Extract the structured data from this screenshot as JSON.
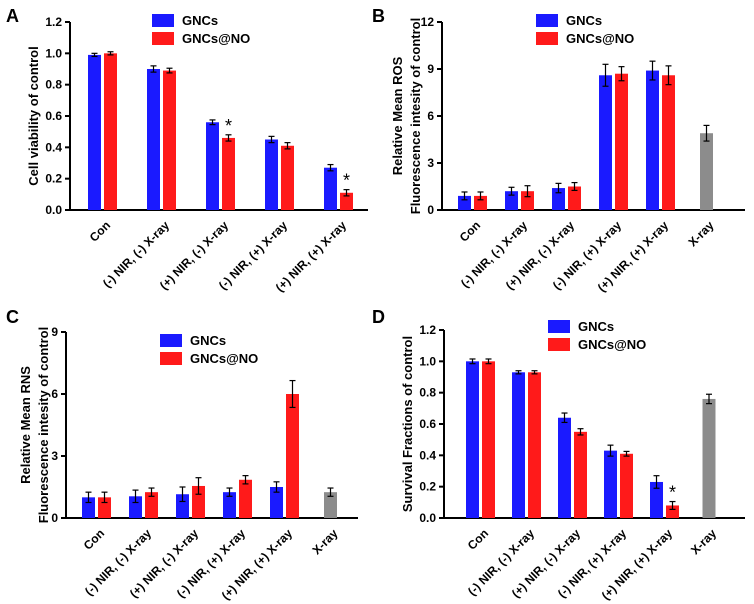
{
  "colors": {
    "GNCs": "#1a1aff",
    "GNCs@NO": "#ff1a1a",
    "X-ray": "#8c8c8c",
    "axis": "#000000"
  },
  "chart_data": [
    {
      "panel": "A",
      "type": "bar",
      "title": "",
      "xlabel": "",
      "ylabel": "Cell viability of control",
      "ylim": [
        0,
        1.2
      ],
      "yticks": [
        "0.0",
        "0.2",
        "0.4",
        "0.6",
        "0.8",
        "1.0",
        "1.2"
      ],
      "categories": [
        "Con",
        "(-) NIR, (-) X-ray",
        "(+) NIR, (-) X-ray",
        "(-) NIR, (+) X-ray",
        "(+) NIR, (+) X-ray"
      ],
      "legend": [
        "GNCs",
        "GNCs@NO"
      ],
      "series": [
        {
          "name": "GNCs",
          "values": [
            0.99,
            0.9,
            0.56,
            0.45,
            0.27
          ],
          "errors": [
            0.01,
            0.02,
            0.015,
            0.02,
            0.02
          ]
        },
        {
          "name": "GNCs@NO",
          "values": [
            1.0,
            0.89,
            0.46,
            0.41,
            0.11
          ],
          "errors": [
            0.01,
            0.015,
            0.02,
            0.02,
            0.02
          ]
        }
      ],
      "annotations": [
        {
          "series": "GNCs@NO",
          "category": "(+) NIR, (-) X-ray",
          "text": "*"
        },
        {
          "series": "GNCs@NO",
          "category": "(+) NIR, (+) X-ray",
          "text": "*"
        }
      ]
    },
    {
      "panel": "B",
      "type": "bar",
      "title": "",
      "xlabel": "",
      "ylabel": [
        "Relative Mean ROS",
        "Fluorescence intesity of control"
      ],
      "ylim": [
        0,
        12
      ],
      "yticks": [
        "0",
        "3",
        "6",
        "9",
        "12"
      ],
      "categories": [
        "Con",
        "(-) NIR, (-) X-ray",
        "(+) NIR, (-) X-ray",
        "(-) NIR, (+) X-ray",
        "(+) NIR, (+) X-ray",
        "X-ray"
      ],
      "legend": [
        "GNCs",
        "GNCs@NO"
      ],
      "series": [
        {
          "name": "GNCs",
          "values": [
            0.9,
            1.2,
            1.4,
            8.6,
            8.9,
            null
          ],
          "errors": [
            0.25,
            0.25,
            0.3,
            0.7,
            0.6,
            null
          ]
        },
        {
          "name": "GNCs@NO",
          "values": [
            0.9,
            1.2,
            1.5,
            8.7,
            8.6,
            null
          ],
          "errors": [
            0.25,
            0.35,
            0.25,
            0.45,
            0.6,
            null
          ]
        },
        {
          "name": "X-ray",
          "values": [
            null,
            null,
            null,
            null,
            null,
            4.9
          ],
          "errors": [
            null,
            null,
            null,
            null,
            null,
            0.5
          ]
        }
      ]
    },
    {
      "panel": "C",
      "type": "bar",
      "title": "",
      "xlabel": "",
      "ylabel": [
        "Relative Mean RNS",
        "Fluorescence intesity of control"
      ],
      "ylim": [
        0,
        9
      ],
      "yticks": [
        "0",
        "3",
        "6",
        "9"
      ],
      "categories": [
        "Con",
        "(-) NIR, (-) X-ray",
        "(+) NIR, (-) X-ray",
        "(-) NIR, (+) X-ray",
        "(+) NIR, (+) X-ray",
        "X-ray"
      ],
      "legend": [
        "GNCs",
        "GNCs@NO"
      ],
      "series": [
        {
          "name": "GNCs",
          "values": [
            1.0,
            1.05,
            1.15,
            1.25,
            1.5,
            null
          ],
          "errors": [
            0.25,
            0.3,
            0.35,
            0.2,
            0.25,
            null
          ]
        },
        {
          "name": "GNCs@NO",
          "values": [
            1.0,
            1.25,
            1.55,
            1.85,
            6.0,
            null
          ],
          "errors": [
            0.25,
            0.2,
            0.4,
            0.2,
            0.65,
            null
          ]
        },
        {
          "name": "X-ray",
          "values": [
            null,
            null,
            null,
            null,
            null,
            1.25
          ],
          "errors": [
            null,
            null,
            null,
            null,
            null,
            0.2
          ]
        }
      ]
    },
    {
      "panel": "D",
      "type": "bar",
      "title": "",
      "xlabel": "",
      "ylabel": "Survival Fractions of control",
      "ylim": [
        0,
        1.2
      ],
      "yticks": [
        "0.0",
        "0.2",
        "0.4",
        "0.6",
        "0.8",
        "1.0",
        "1.2"
      ],
      "categories": [
        "Con",
        "(-) NIR, (-) X-ray",
        "(+) NIR, (-) X-ray",
        "(-) NIR, (+) X-ray",
        "(+) NIR, (+) X-ray",
        "X-ray"
      ],
      "legend": [
        "GNCs",
        "GNCs@NO"
      ],
      "series": [
        {
          "name": "GNCs",
          "values": [
            1.0,
            0.93,
            0.64,
            0.43,
            0.23,
            null
          ],
          "errors": [
            0.015,
            0.01,
            0.03,
            0.035,
            0.04,
            null
          ]
        },
        {
          "name": "GNCs@NO",
          "values": [
            1.0,
            0.93,
            0.55,
            0.41,
            0.08,
            null
          ],
          "errors": [
            0.015,
            0.01,
            0.02,
            0.015,
            0.025,
            null
          ]
        },
        {
          "name": "X-ray",
          "values": [
            null,
            null,
            null,
            null,
            null,
            0.76
          ],
          "errors": [
            null,
            null,
            null,
            null,
            null,
            0.03
          ]
        }
      ],
      "annotations": [
        {
          "series": "GNCs@NO",
          "category": "(+) NIR, (+) X-ray",
          "text": "*"
        }
      ]
    }
  ]
}
